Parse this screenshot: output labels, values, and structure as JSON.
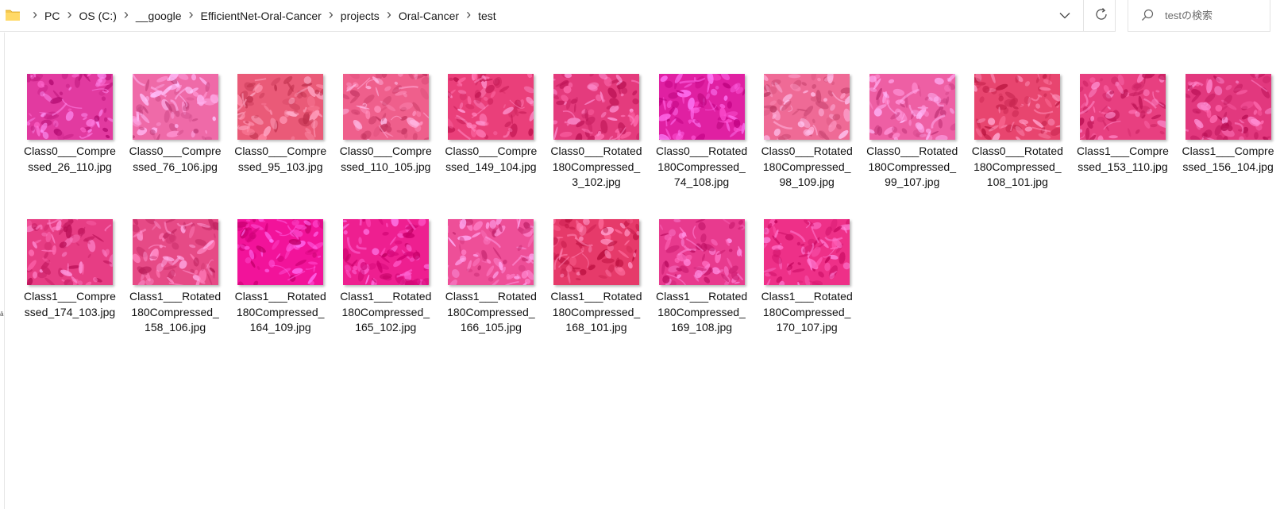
{
  "address_bar": {
    "breadcrumbs": [
      "PC",
      "OS (C:)",
      "__google",
      "EfficientNet-Oral-Cancer",
      "projects",
      "Oral-Cancer",
      "test"
    ],
    "folder_icon": "folder-icon",
    "dropdown_icon": "chevron-down-icon",
    "refresh_icon": "refresh-icon"
  },
  "search": {
    "placeholder": "testの検索",
    "icon": "search-icon"
  },
  "nav_pane": {
    "glyph": "ä"
  },
  "files": [
    {
      "name": "Class0___Compressed_26_110.jpg",
      "line1": "Class0___Compre",
      "line2": "ssed_26_110.jpg",
      "line3": "",
      "tone": "#e23aa0"
    },
    {
      "name": "Class0___Compressed_76_106.jpg",
      "line1": "Class0___Compre",
      "line2": "ssed_76_106.jpg",
      "line3": "",
      "tone": "#ef6aa8"
    },
    {
      "name": "Class0___Compressed_95_103.jpg",
      "line1": "Class0___Compre",
      "line2": "ssed_95_103.jpg",
      "line3": "",
      "tone": "#ea5a78"
    },
    {
      "name": "Class0___Compressed_110_105.jpg",
      "line1": "Class0___Compre",
      "line2": "ssed_110_105.jpg",
      "line3": "",
      "tone": "#ef5f8c"
    },
    {
      "name": "Class0___Compressed_149_104.jpg",
      "line1": "Class0___Compre",
      "line2": "ssed_149_104.jpg",
      "line3": "",
      "tone": "#ea3f7a"
    },
    {
      "name": "Class0___Rotated180Compressed_3_102.jpg",
      "line1": "Class0___Rotated",
      "line2": "180Compressed_",
      "line3": "3_102.jpg",
      "tone": "#e43b7d"
    },
    {
      "name": "Class0___Rotated180Compressed_74_108.jpg",
      "line1": "Class0___Rotated",
      "line2": "180Compressed_",
      "line3": "74_108.jpg",
      "tone": "#e020a2"
    },
    {
      "name": "Class0___Rotated180Compressed_98_109.jpg",
      "line1": "Class0___Rotated",
      "line2": "180Compressed_",
      "line3": "98_109.jpg",
      "tone": "#ef6a96"
    },
    {
      "name": "Class0___Rotated180Compressed_99_107.jpg",
      "line1": "Class0___Rotated",
      "line2": "180Compressed_",
      "line3": "99_107.jpg",
      "tone": "#ee5fa4"
    },
    {
      "name": "Class0___Rotated180Compressed_108_101.jpg",
      "line1": "Class0___Rotated",
      "line2": "180Compressed_",
      "line3": "108_101.jpg",
      "tone": "#e8456f"
    },
    {
      "name": "Class1___Compressed_153_110.jpg",
      "line1": "Class1___Compre",
      "line2": "ssed_153_110.jpg",
      "line3": "",
      "tone": "#e83f80"
    },
    {
      "name": "Class1___Compressed_156_104.jpg",
      "line1": "Class1___Compre",
      "line2": "ssed_156_104.jpg",
      "line3": "",
      "tone": "#e2387e"
    },
    {
      "name": "Class1___Compressed_174_103.jpg",
      "line1": "Class1___Compre",
      "line2": "ssed_174_103.jpg",
      "line3": "",
      "tone": "#e73d84"
    },
    {
      "name": "Class1___Rotated180Compressed_158_106.jpg",
      "line1": "Class1___Rotated",
      "line2": "180Compressed_",
      "line3": "158_106.jpg",
      "tone": "#e64a86"
    },
    {
      "name": "Class1___Rotated180Compressed_164_109.jpg",
      "line1": "Class1___Rotated",
      "line2": "180Compressed_",
      "line3": "164_109.jpg",
      "tone": "#f2139a"
    },
    {
      "name": "Class1___Rotated180Compressed_165_102.jpg",
      "line1": "Class1___Rotated",
      "line2": "180Compressed_",
      "line3": "165_102.jpg",
      "tone": "#ee1f90"
    },
    {
      "name": "Class1___Rotated180Compressed_166_105.jpg",
      "line1": "Class1___Rotated",
      "line2": "180Compressed_",
      "line3": "166_105.jpg",
      "tone": "#ee4f98"
    },
    {
      "name": "Class1___Rotated180Compressed_168_101.jpg",
      "line1": "Class1___Rotated",
      "line2": "180Compressed_",
      "line3": "168_101.jpg",
      "tone": "#e63a6a"
    },
    {
      "name": "Class1___Rotated180Compressed_169_108.jpg",
      "line1": "Class1___Rotated",
      "line2": "180Compressed_",
      "line3": "169_108.jpg",
      "tone": "#e83a8e"
    },
    {
      "name": "Class1___Rotated180Compressed_170_107.jpg",
      "line1": "Class1___Rotated",
      "line2": "180Compressed_",
      "line3": "170_107.jpg",
      "tone": "#ee3088"
    }
  ]
}
